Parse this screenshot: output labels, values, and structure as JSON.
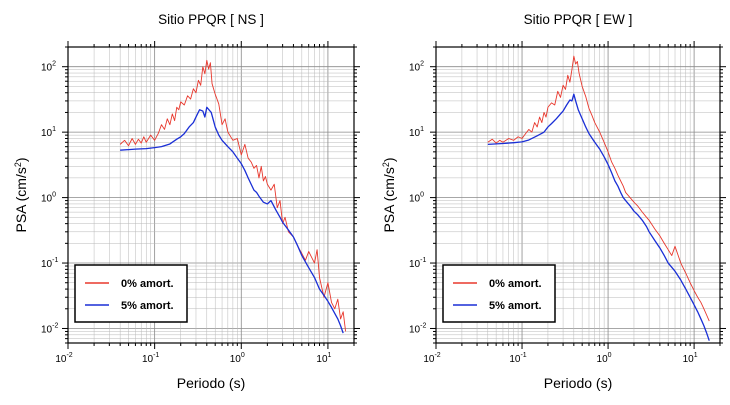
{
  "chart_data": [
    {
      "type": "line",
      "title": "Sitio PPQR [ NS ]",
      "xlabel": "Periodo (s)",
      "ylabel_main": "PSA (cm/s",
      "ylabel_sup": "2",
      "ylabel_close": ")",
      "xscale": "log",
      "yscale": "log",
      "xlim": [
        0.01,
        20
      ],
      "ylim": [
        0.006,
        200
      ],
      "x_ticks": [
        {
          "base": "10",
          "exp": "-2"
        },
        {
          "base": "10",
          "exp": "-1"
        },
        {
          "base": "10",
          "exp": "0"
        },
        {
          "base": "10",
          "exp": "1"
        }
      ],
      "y_ticks": [
        {
          "base": "10",
          "exp": "-2"
        },
        {
          "base": "10",
          "exp": "-1"
        },
        {
          "base": "10",
          "exp": "0"
        },
        {
          "base": "10",
          "exp": "1"
        },
        {
          "base": "10",
          "exp": "2"
        }
      ],
      "grid": true,
      "legend_position": "bottom-left",
      "series": [
        {
          "name": "0% amort.",
          "color": "#e8382d",
          "points": [
            [
              0.04,
              6.5
            ],
            [
              0.045,
              7.5
            ],
            [
              0.05,
              6.2
            ],
            [
              0.055,
              8
            ],
            [
              0.06,
              6.5
            ],
            [
              0.065,
              7.8
            ],
            [
              0.07,
              6.8
            ],
            [
              0.075,
              8.5
            ],
            [
              0.08,
              7
            ],
            [
              0.09,
              9
            ],
            [
              0.1,
              7.5
            ],
            [
              0.11,
              9.5
            ],
            [
              0.12,
              13
            ],
            [
              0.13,
              11
            ],
            [
              0.14,
              16
            ],
            [
              0.15,
              13
            ],
            [
              0.16,
              19
            ],
            [
              0.17,
              15
            ],
            [
              0.18,
              24
            ],
            [
              0.19,
              22
            ],
            [
              0.2,
              29
            ],
            [
              0.22,
              26
            ],
            [
              0.24,
              36
            ],
            [
              0.26,
              32
            ],
            [
              0.28,
              46
            ],
            [
              0.3,
              40
            ],
            [
              0.32,
              62
            ],
            [
              0.34,
              52
            ],
            [
              0.36,
              100
            ],
            [
              0.38,
              78
            ],
            [
              0.4,
              125
            ],
            [
              0.42,
              92
            ],
            [
              0.44,
              115
            ],
            [
              0.46,
              55
            ],
            [
              0.5,
              38
            ],
            [
              0.55,
              27
            ],
            [
              0.6,
              13
            ],
            [
              0.65,
              16
            ],
            [
              0.7,
              10
            ],
            [
              0.8,
              7.5
            ],
            [
              0.9,
              8
            ],
            [
              1.0,
              4.5
            ],
            [
              1.1,
              6.5
            ],
            [
              1.2,
              4
            ],
            [
              1.3,
              3.5
            ],
            [
              1.4,
              2.8
            ],
            [
              1.5,
              3.1
            ],
            [
              1.6,
              2
            ],
            [
              1.7,
              3
            ],
            [
              1.8,
              1.8
            ],
            [
              1.9,
              2.1
            ],
            [
              2.0,
              1.6
            ],
            [
              2.2,
              1.3
            ],
            [
              2.4,
              1.6
            ],
            [
              2.6,
              0.7
            ],
            [
              2.8,
              0.9
            ],
            [
              3.0,
              0.4
            ],
            [
              3.2,
              0.5
            ],
            [
              3.5,
              0.3
            ],
            [
              4.0,
              0.25
            ],
            [
              4.5,
              0.18
            ],
            [
              5.0,
              0.14
            ],
            [
              5.5,
              0.11
            ],
            [
              6.0,
              0.15
            ],
            [
              7.0,
              0.1
            ],
            [
              7.5,
              0.16
            ],
            [
              8.0,
              0.06
            ],
            [
              9.0,
              0.03
            ],
            [
              10,
              0.05
            ],
            [
              11,
              0.025
            ],
            [
              12,
              0.02
            ],
            [
              13,
              0.028
            ],
            [
              14,
              0.014
            ],
            [
              15,
              0.018
            ],
            [
              16,
              0.009
            ]
          ]
        },
        {
          "name": "5% amort.",
          "color": "#1a2fd6",
          "points": [
            [
              0.04,
              5.3
            ],
            [
              0.06,
              5.5
            ],
            [
              0.08,
              5.6
            ],
            [
              0.1,
              5.8
            ],
            [
              0.12,
              6
            ],
            [
              0.15,
              6.6
            ],
            [
              0.18,
              7.8
            ],
            [
              0.2,
              8.5
            ],
            [
              0.22,
              9.5
            ],
            [
              0.25,
              12
            ],
            [
              0.28,
              14
            ],
            [
              0.3,
              17
            ],
            [
              0.33,
              22
            ],
            [
              0.36,
              21
            ],
            [
              0.38,
              17
            ],
            [
              0.4,
              24
            ],
            [
              0.45,
              20
            ],
            [
              0.5,
              12
            ],
            [
              0.55,
              9
            ],
            [
              0.6,
              7.5
            ],
            [
              0.7,
              6
            ],
            [
              0.8,
              5
            ],
            [
              0.9,
              4
            ],
            [
              1.0,
              3.3
            ],
            [
              1.1,
              2.6
            ],
            [
              1.2,
              2
            ],
            [
              1.3,
              1.6
            ],
            [
              1.4,
              1.3
            ],
            [
              1.5,
              1.2
            ],
            [
              1.6,
              1.05
            ],
            [
              1.8,
              0.85
            ],
            [
              2.0,
              0.8
            ],
            [
              2.2,
              0.9
            ],
            [
              2.5,
              0.65
            ],
            [
              2.8,
              0.5
            ],
            [
              3.0,
              0.42
            ],
            [
              3.5,
              0.32
            ],
            [
              4.0,
              0.25
            ],
            [
              4.5,
              0.18
            ],
            [
              5.0,
              0.13
            ],
            [
              6.0,
              0.085
            ],
            [
              7.0,
              0.06
            ],
            [
              8.0,
              0.04
            ],
            [
              9.0,
              0.032
            ],
            [
              10,
              0.026
            ],
            [
              11,
              0.021
            ],
            [
              12,
              0.017
            ],
            [
              13,
              0.014
            ],
            [
              14,
              0.011
            ],
            [
              15,
              0.0085
            ]
          ]
        }
      ],
      "legend_labels": [
        "0% amort.",
        "5% amort."
      ]
    },
    {
      "type": "line",
      "title": "Sitio PPQR [ EW ]",
      "xlabel": "Periodo (s)",
      "ylabel_main": "PSA (cm/s",
      "ylabel_sup": "2",
      "ylabel_close": ")",
      "xscale": "log",
      "yscale": "log",
      "xlim": [
        0.01,
        20
      ],
      "ylim": [
        0.006,
        200
      ],
      "x_ticks": [
        {
          "base": "10",
          "exp": "-2"
        },
        {
          "base": "10",
          "exp": "-1"
        },
        {
          "base": "10",
          "exp": "0"
        },
        {
          "base": "10",
          "exp": "1"
        }
      ],
      "y_ticks": [
        {
          "base": "10",
          "exp": "-2"
        },
        {
          "base": "10",
          "exp": "-1"
        },
        {
          "base": "10",
          "exp": "0"
        },
        {
          "base": "10",
          "exp": "1"
        },
        {
          "base": "10",
          "exp": "2"
        }
      ],
      "grid": true,
      "legend_position": "bottom-left",
      "series": [
        {
          "name": "0% amort.",
          "color": "#e8382d",
          "points": [
            [
              0.04,
              7
            ],
            [
              0.045,
              7.8
            ],
            [
              0.05,
              6.8
            ],
            [
              0.055,
              7.5
            ],
            [
              0.06,
              7
            ],
            [
              0.07,
              8
            ],
            [
              0.08,
              7.5
            ],
            [
              0.09,
              8.5
            ],
            [
              0.1,
              8
            ],
            [
              0.11,
              9.5
            ],
            [
              0.12,
              11
            ],
            [
              0.13,
              10
            ],
            [
              0.14,
              14
            ],
            [
              0.15,
              12
            ],
            [
              0.16,
              17
            ],
            [
              0.17,
              14
            ],
            [
              0.18,
              20
            ],
            [
              0.19,
              17
            ],
            [
              0.2,
              24
            ],
            [
              0.22,
              28
            ],
            [
              0.24,
              26
            ],
            [
              0.26,
              42
            ],
            [
              0.28,
              34
            ],
            [
              0.3,
              52
            ],
            [
              0.32,
              45
            ],
            [
              0.34,
              74
            ],
            [
              0.36,
              58
            ],
            [
              0.38,
              90
            ],
            [
              0.4,
              145
            ],
            [
              0.42,
              110
            ],
            [
              0.44,
              120
            ],
            [
              0.46,
              80
            ],
            [
              0.5,
              50
            ],
            [
              0.55,
              35
            ],
            [
              0.6,
              23
            ],
            [
              0.65,
              18
            ],
            [
              0.7,
              14
            ],
            [
              0.8,
              10
            ],
            [
              0.9,
              7
            ],
            [
              1.0,
              5
            ],
            [
              1.1,
              3.5
            ],
            [
              1.2,
              2.8
            ],
            [
              1.3,
              2.2
            ],
            [
              1.4,
              1.8
            ],
            [
              1.5,
              1.5
            ],
            [
              1.6,
              1.2
            ],
            [
              1.8,
              1.0
            ],
            [
              2.0,
              0.85
            ],
            [
              2.2,
              0.75
            ],
            [
              2.5,
              0.6
            ],
            [
              2.8,
              0.5
            ],
            [
              3.0,
              0.45
            ],
            [
              3.5,
              0.33
            ],
            [
              4.0,
              0.26
            ],
            [
              4.5,
              0.2
            ],
            [
              5.0,
              0.16
            ],
            [
              5.5,
              0.13
            ],
            [
              6.0,
              0.18
            ],
            [
              7.0,
              0.1
            ],
            [
              8.0,
              0.07
            ],
            [
              9.0,
              0.05
            ],
            [
              10,
              0.038
            ],
            [
              11,
              0.03
            ],
            [
              12,
              0.025
            ],
            [
              13,
              0.02
            ],
            [
              14,
              0.016
            ],
            [
              15,
              0.013
            ]
          ]
        },
        {
          "name": "5% amort.",
          "color": "#1a2fd6",
          "points": [
            [
              0.04,
              6.5
            ],
            [
              0.06,
              6.7
            ],
            [
              0.08,
              6.9
            ],
            [
              0.1,
              7.1
            ],
            [
              0.12,
              7.6
            ],
            [
              0.15,
              8.8
            ],
            [
              0.18,
              10
            ],
            [
              0.2,
              12
            ],
            [
              0.22,
              13.5
            ],
            [
              0.25,
              16
            ],
            [
              0.28,
              19
            ],
            [
              0.3,
              21
            ],
            [
              0.33,
              26
            ],
            [
              0.36,
              31
            ],
            [
              0.38,
              30
            ],
            [
              0.4,
              38
            ],
            [
              0.42,
              30
            ],
            [
              0.45,
              22
            ],
            [
              0.5,
              16
            ],
            [
              0.55,
              12
            ],
            [
              0.6,
              9.5
            ],
            [
              0.7,
              7
            ],
            [
              0.8,
              5.5
            ],
            [
              0.9,
              4.2
            ],
            [
              1.0,
              3.2
            ],
            [
              1.1,
              2.4
            ],
            [
              1.2,
              1.8
            ],
            [
              1.3,
              1.5
            ],
            [
              1.4,
              1.2
            ],
            [
              1.5,
              1.0
            ],
            [
              1.6,
              0.9
            ],
            [
              1.8,
              0.75
            ],
            [
              2.0,
              0.62
            ],
            [
              2.2,
              0.55
            ],
            [
              2.5,
              0.45
            ],
            [
              2.8,
              0.36
            ],
            [
              3.0,
              0.3
            ],
            [
              3.5,
              0.22
            ],
            [
              4.0,
              0.17
            ],
            [
              4.5,
              0.13
            ],
            [
              5.0,
              0.1
            ],
            [
              6.0,
              0.075
            ],
            [
              7.0,
              0.055
            ],
            [
              8.0,
              0.04
            ],
            [
              9.0,
              0.03
            ],
            [
              10,
              0.023
            ],
            [
              11,
              0.018
            ],
            [
              12,
              0.014
            ],
            [
              13,
              0.011
            ],
            [
              14,
              0.0085
            ],
            [
              15,
              0.0065
            ]
          ]
        }
      ],
      "legend_labels": [
        "0% amort.",
        "5% amort."
      ]
    }
  ]
}
